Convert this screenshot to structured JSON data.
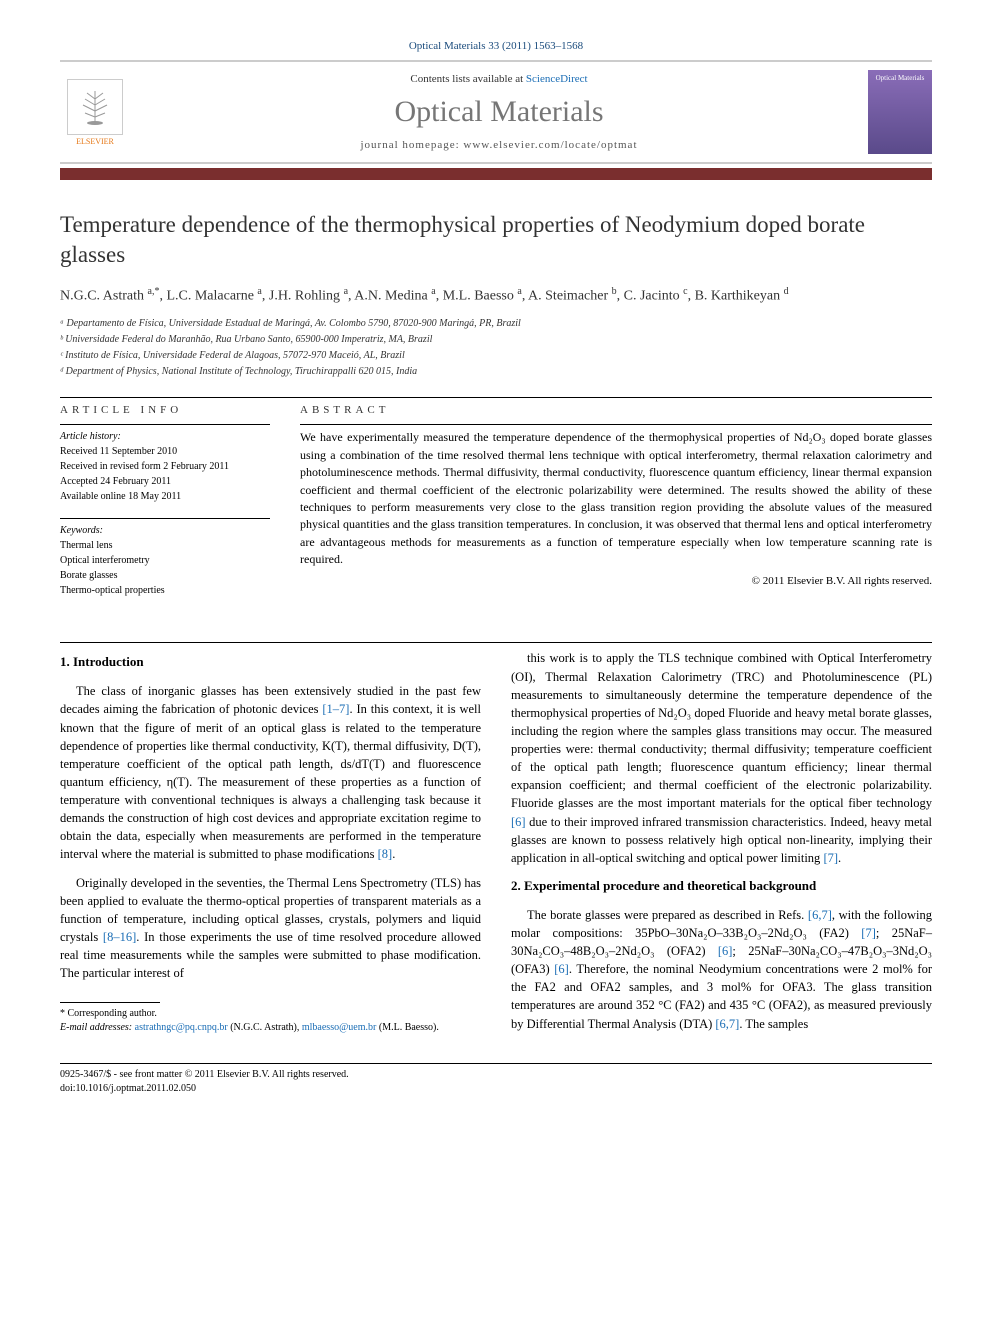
{
  "journal_ref": "Optical Materials 33 (2011) 1563–1568",
  "header": {
    "elsevier_label": "ELSEVIER",
    "contents_line_prefix": "Contents lists available at ",
    "contents_link": "ScienceDirect",
    "journal_name": "Optical Materials",
    "homepage_prefix": "journal homepage: ",
    "homepage_url": "www.elsevier.com/locate/optmat",
    "cover_text": "Optical Materials"
  },
  "title": "Temperature dependence of the thermophysical properties of Neodymium doped borate glasses",
  "authors_html": "N.G.C. Astrath <sup>a,*</sup>, L.C. Malacarne <sup>a</sup>, J.H. Rohling <sup>a</sup>, A.N. Medina <sup>a</sup>, M.L. Baesso <sup>a</sup>, A. Steimacher <sup>b</sup>, C. Jacinto <sup>c</sup>, B. Karthikeyan <sup>d</sup>",
  "affiliations": [
    "ᵃ Departamento de Física, Universidade Estadual de Maringá, Av. Colombo 5790, 87020-900 Maringá, PR, Brazil",
    "ᵇ Universidade Federal do Maranhão, Rua Urbano Santo, 65900-000 Imperatriz, MA, Brazil",
    "ᶜ Instituto de Física, Universidade Federal de Alagoas, 57072-970 Maceió, AL, Brazil",
    "ᵈ Department of Physics, National Institute of Technology, Tiruchirappalli 620 015, India"
  ],
  "article_info": {
    "section_label": "article info",
    "history_label": "Article history:",
    "history": [
      "Received 11 September 2010",
      "Received in revised form 2 February 2011",
      "Accepted 24 February 2011",
      "Available online 18 May 2011"
    ],
    "keywords_label": "Keywords:",
    "keywords": [
      "Thermal lens",
      "Optical interferometry",
      "Borate glasses",
      "Thermo-optical properties"
    ]
  },
  "abstract": {
    "section_label": "abstract",
    "text": "We have experimentally measured the temperature dependence of the thermophysical properties of Nd₂O₃ doped borate glasses using a combination of the time resolved thermal lens technique with optical interferometry, thermal relaxation calorimetry and photoluminescence methods. Thermal diffusivity, thermal conductivity, fluorescence quantum efficiency, linear thermal expansion coefficient and thermal coefficient of the electronic polarizability were determined. The results showed the ability of these techniques to perform measurements very close to the glass transition region providing the absolute values of the measured physical quantities and the glass transition temperatures. In conclusion, it was observed that thermal lens and optical interferometry are advantageous methods for measurements as a function of temperature especially when low temperature scanning rate is required.",
    "copyright": "© 2011 Elsevier B.V. All rights reserved."
  },
  "sections": {
    "intro_heading": "1. Introduction",
    "intro_p1": "The class of inorganic glasses has been extensively studied in the past few decades aiming the fabrication of photonic devices [1–7]. In this context, it is well known that the figure of merit of an optical glass is related to the temperature dependence of properties like thermal conductivity, K(T), thermal diffusivity, D(T), temperature coefficient of the optical path length, ds/dT(T) and fluorescence quantum efficiency, η(T). The measurement of these properties as a function of temperature with conventional techniques is always a challenging task because it demands the construction of high cost devices and appropriate excitation regime to obtain the data, especially when measurements are performed in the temperature interval where the material is submitted to phase modifications [8].",
    "intro_p2": "Originally developed in the seventies, the Thermal Lens Spectrometry (TLS) has been applied to evaluate the thermo-optical properties of transparent materials as a function of temperature, including optical glasses, crystals, polymers and liquid crystals [8–16]. In those experiments the use of time resolved procedure allowed real time measurements while the samples were submitted to phase modification. The particular interest of",
    "intro_p3": "this work is to apply the TLS technique combined with Optical Interferometry (OI), Thermal Relaxation Calorimetry (TRC) and Photoluminescence (PL) measurements to simultaneously determine the temperature dependence of the thermophysical properties of Nd₂O₃ doped Fluoride and heavy metal borate glasses, including the region where the samples glass transitions may occur. The measured properties were: thermal conductivity; thermal diffusivity; temperature coefficient of the optical path length; fluorescence quantum efficiency; linear thermal expansion coefficient; and thermal coefficient of the electronic polarizability. Fluoride glasses are the most important materials for the optical fiber technology [6] due to their improved infrared transmission characteristics. Indeed, heavy metal glasses are known to possess relatively high optical non-linearity, implying their application in all-optical switching and optical power limiting [7].",
    "exp_heading": "2. Experimental procedure and theoretical background",
    "exp_p1": "The borate glasses were prepared as described in Refs. [6,7], with the following molar compositions: 35PbO–30Na₂O–33B₂O₃–2Nd₂O₃ (FA2) [7]; 25NaF–30Na₂CO₃–48B₂O₃–2Nd₂O₃ (OFA2) [6]; 25NaF–30Na₂CO₃–47B₂O₃–3Nd₂O₃ (OFA3) [6]. Therefore, the nominal Neodymium concentrations were 2 mol% for the FA2 and OFA2 samples, and 3 mol% for OFA3. The glass transition temperatures are around 352 °C (FA2) and 435 °C (OFA2), as measured previously by Differential Thermal Analysis (DTA) [6,7]. The samples"
  },
  "footnote": {
    "corr_label": "* Corresponding author.",
    "email_label": "E-mail addresses:",
    "email1": "astrathngc@pq.cnpq.br",
    "email1_name": " (N.G.C. Astrath), ",
    "email2": "mlbaesso@uem.br",
    "email2_name": "(M.L. Baesso)."
  },
  "bottom": {
    "line1": "0925-3467/$ - see front matter © 2011 Elsevier B.V. All rights reserved.",
    "line2": "doi:10.1016/j.optmat.2011.02.050"
  },
  "colors": {
    "link": "#1a6db5",
    "maroon": "#7a2e2e",
    "journal_gray": "#767676",
    "elsevier_orange": "#e67817"
  }
}
